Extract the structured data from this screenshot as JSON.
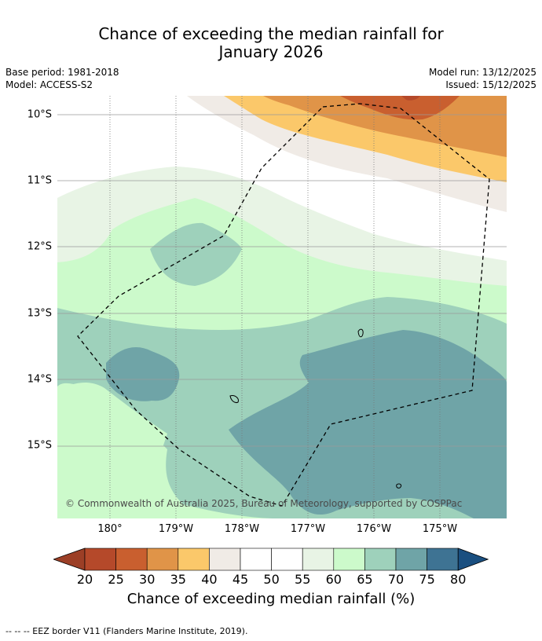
{
  "title": {
    "line1": "Chance of exceeding the median rainfall for",
    "line2": "January 2026"
  },
  "meta": {
    "base_period": "Base period: 1981-2018",
    "model": "Model: ACCESS-S2",
    "model_run": "Model run: 13/12/2025",
    "issued": "Issued: 15/12/2025"
  },
  "map": {
    "lat_labels": [
      "10°S",
      "11°S",
      "12°S",
      "13°S",
      "14°S",
      "15°S"
    ],
    "lon_labels": [
      "180°",
      "179°W",
      "178°W",
      "177°W",
      "176°W",
      "175°W"
    ],
    "copyright": "© Commonwealth of Australia 2025, Bureau of Meteorology, supported by COSPPac"
  },
  "colorbar": {
    "ticks": [
      "20",
      "25",
      "30",
      "35",
      "40",
      "45",
      "50",
      "55",
      "60",
      "65",
      "70",
      "75",
      "80"
    ],
    "label": "Chance of exceeding median rainfall (%)",
    "colors": [
      "#9c3f26",
      "#b5492a",
      "#c95f2f",
      "#e09448",
      "#fbc86a",
      "#f0ebe6",
      "#ffffff",
      "#ffffff",
      "#e8f4e5",
      "#ccfacb",
      "#9ed1bb",
      "#6fa4a7",
      "#3e7393",
      "#1a4f80"
    ]
  },
  "footnote": "--  --  -- EEZ border V11 (Flanders Marine Institute, 2019)."
}
